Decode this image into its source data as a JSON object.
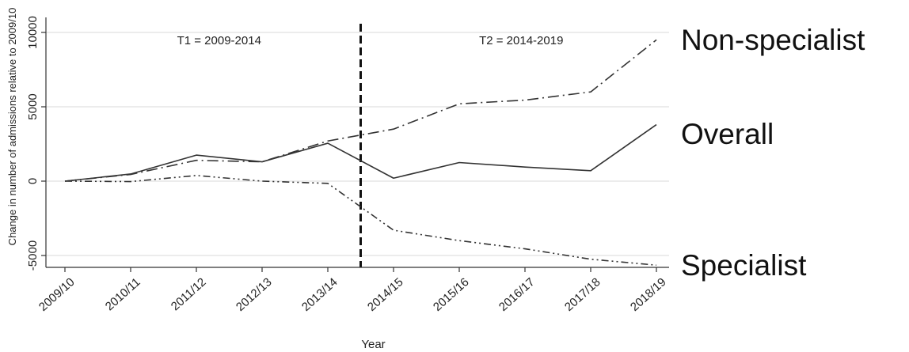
{
  "chart_data": {
    "type": "line",
    "xlabel": "Year",
    "ylabel": "Change in number of admissions relative to 2009/10",
    "categories": [
      "2009/10",
      "2010/11",
      "2011/12",
      "2012/13",
      "2013/14",
      "2014/15",
      "2015/16",
      "2016/17",
      "2017/18",
      "2018/19"
    ],
    "ylim": [
      -5500,
      10200
    ],
    "yticks": [
      -5000,
      0,
      5000,
      10000
    ],
    "ytick_labels": [
      "-5000",
      "0",
      "5000",
      "10000"
    ],
    "grid": true,
    "series": [
      {
        "name": "Non-specialist",
        "line_style": "dash-dot",
        "values": [
          0,
          450,
          1400,
          1300,
          2700,
          3500,
          5200,
          5450,
          6000,
          9500
        ]
      },
      {
        "name": "Overall",
        "line_style": "solid",
        "values": [
          0,
          480,
          1750,
          1300,
          2550,
          200,
          1250,
          950,
          700,
          3800
        ]
      },
      {
        "name": "Specialist",
        "line_style": "dash-dot-dot",
        "values": [
          0,
          -30,
          380,
          0,
          -150,
          -3300,
          -4000,
          -4550,
          -5250,
          -5650
        ]
      }
    ],
    "annotations": [
      {
        "text": "T1 = 2009-2014"
      },
      {
        "text": "T2 = 2014-2019"
      }
    ],
    "divider": {
      "position": "between 2013/14 and 2014/15",
      "style": "dashed"
    }
  }
}
